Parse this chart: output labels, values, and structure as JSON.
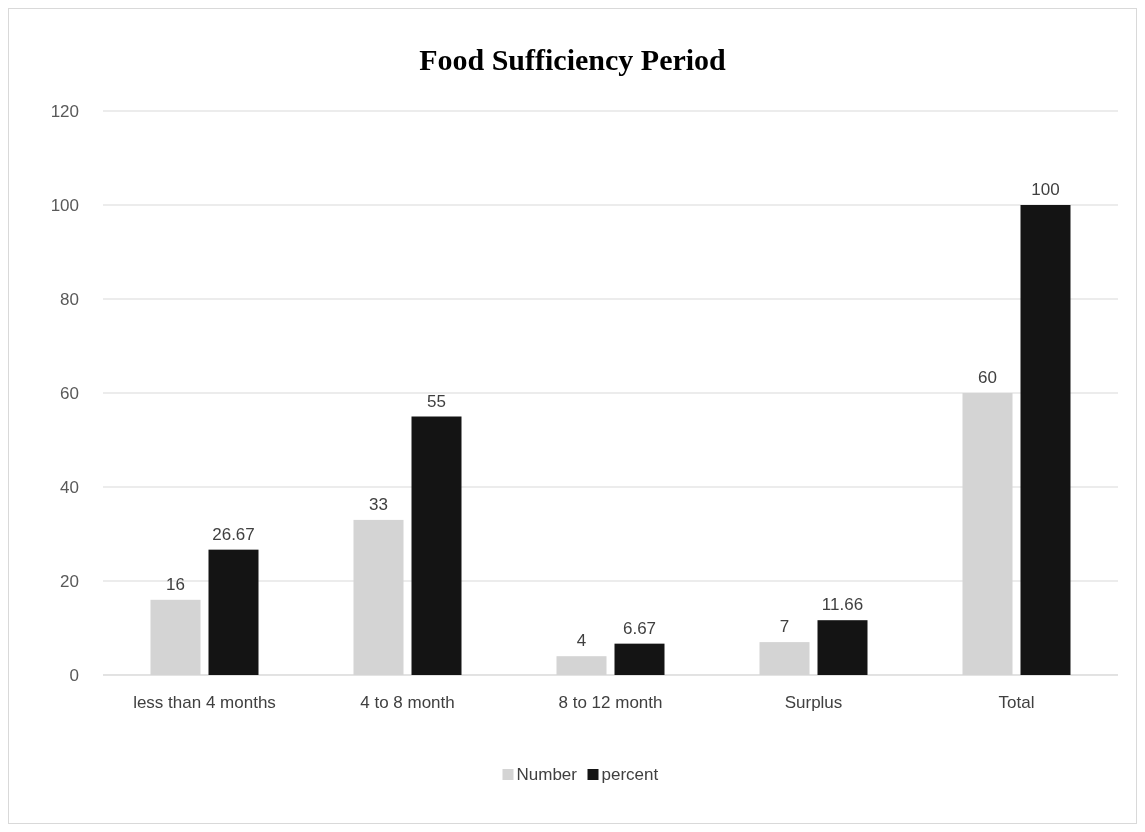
{
  "chart_data": {
    "type": "bar",
    "title": "Food Sufficiency Period",
    "categories": [
      "less than 4 months",
      "4 to 8 month",
      "8 to 12 month",
      "Surplus",
      "Total"
    ],
    "series": [
      {
        "name": "Number",
        "color": "#d4d4d4",
        "values": [
          16,
          33,
          4,
          7,
          60
        ]
      },
      {
        "name": "percent",
        "color": "#141414",
        "values": [
          26.67,
          55,
          6.67,
          11.66,
          100
        ]
      }
    ],
    "ylim": [
      0,
      120
    ],
    "yticks": [
      0,
      20,
      40,
      60,
      80,
      100,
      120
    ],
    "grid": "y",
    "legend": "bottom",
    "data_labels": true
  }
}
